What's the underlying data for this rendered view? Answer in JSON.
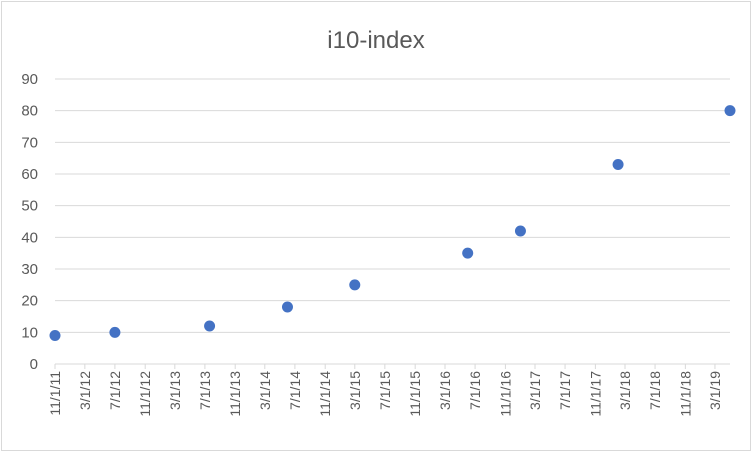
{
  "chart_data": {
    "type": "scatter",
    "title": "i10-index",
    "xlabel": "",
    "ylabel": "",
    "ylim": [
      0,
      90
    ],
    "yticks": [
      0,
      10,
      20,
      30,
      40,
      50,
      60,
      70,
      80,
      90
    ],
    "xlim": [
      "11/1/11",
      "5/1/19"
    ],
    "xtick_labels": [
      "11/1/11",
      "3/1/12",
      "7/1/12",
      "11/1/12",
      "3/1/13",
      "7/1/13",
      "11/1/13",
      "3/1/14",
      "7/1/14",
      "11/1/14",
      "3/1/15",
      "7/1/15",
      "11/1/15",
      "3/1/16",
      "7/1/16",
      "11/1/16",
      "3/1/17",
      "7/1/17",
      "11/1/17",
      "3/1/18",
      "7/1/18",
      "11/1/18",
      "3/1/19"
    ],
    "grid": true,
    "legend": "none",
    "marker_color": "#4472c4",
    "points": [
      {
        "x": "11/1/11",
        "y": 9
      },
      {
        "x": "7/1/12",
        "y": 10
      },
      {
        "x": "7/20/13",
        "y": 12
      },
      {
        "x": "6/1/14",
        "y": 18
      },
      {
        "x": "3/1/15",
        "y": 25
      },
      {
        "x": "6/1/16",
        "y": 35
      },
      {
        "x": "1/1/17",
        "y": 42
      },
      {
        "x": "2/1/18",
        "y": 63
      },
      {
        "x": "5/1/19",
        "y": 80
      }
    ]
  }
}
